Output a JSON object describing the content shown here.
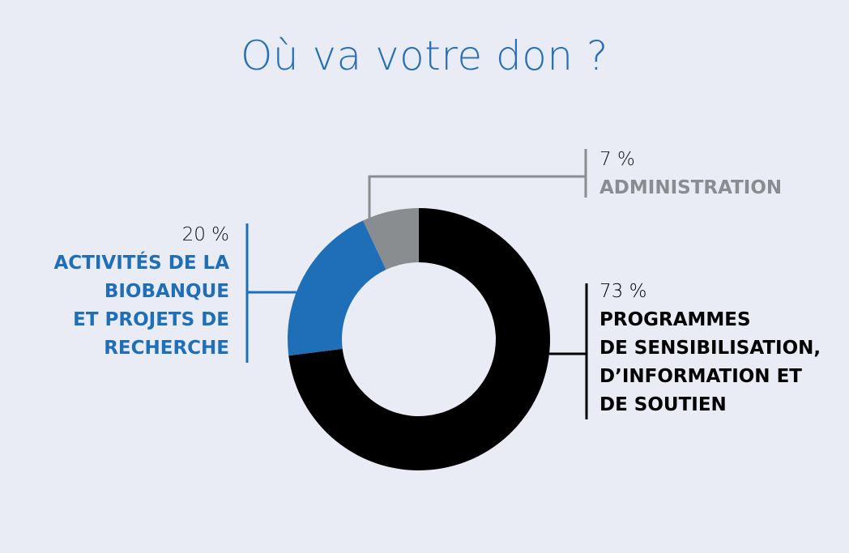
{
  "chart_data": {
    "type": "pie",
    "variant": "donut",
    "title": "Où va votre don ?",
    "slices": [
      {
        "label": "PROGRAMMES DE SENSIBILISATION, D'INFORMATION ET DE SOUTIEN",
        "lines": [
          "PROGRAMMES",
          "DE SENSIBILISATION,",
          "D’INFORMATION ET",
          "DE SOUTIEN"
        ],
        "value": 73,
        "value_label": "73 %",
        "color": "#000000"
      },
      {
        "label": "ACTIVITÉS DE LA BIOBANQUE ET PROJETS DE RECHERCHE",
        "lines": [
          "ACTIVITÉS DE LA",
          "BIOBANQUE",
          "ET PROJETS DE",
          "RECHERCHE"
        ],
        "value": 20,
        "value_label": "20 %",
        "color": "#1f6fb8"
      },
      {
        "label": "ADMINISTRATION",
        "lines": [
          "ADMINISTRATION"
        ],
        "value": 7,
        "value_label": "7 %",
        "color": "#8a8d8f"
      }
    ]
  }
}
